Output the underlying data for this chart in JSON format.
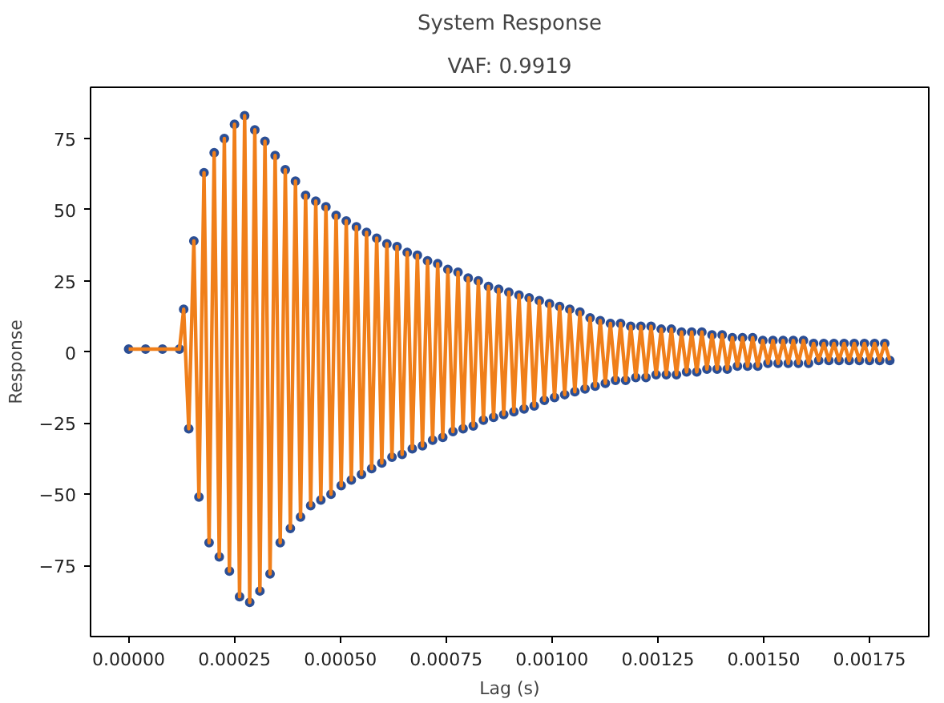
{
  "chart_data": {
    "type": "line",
    "title": "System Response",
    "subtitle": "VAF: 0.9919",
    "xlabel": "Lag (s)",
    "ylabel": "Response",
    "xlim": [
      -9e-05,
      0.00189
    ],
    "ylim": [
      -100,
      93
    ],
    "xticks": [
      {
        "value": 0,
        "label": "0.00000"
      },
      {
        "value": 0.00025,
        "label": "0.00025"
      },
      {
        "value": 0.0005,
        "label": "0.00050"
      },
      {
        "value": 0.00075,
        "label": "0.00075"
      },
      {
        "value": 0.001,
        "label": "0.00100"
      },
      {
        "value": 0.00125,
        "label": "0.00125"
      },
      {
        "value": 0.0015,
        "label": "0.00150"
      },
      {
        "value": 0.00175,
        "label": "0.00175"
      }
    ],
    "yticks": [
      -75,
      -50,
      -25,
      0,
      25,
      50,
      75
    ],
    "grid": false,
    "x": [
      0,
      4e-05,
      8e-05,
      0.00012,
      0.00013,
      0.000142,
      0.000154,
      0.000166,
      0.000178,
      0.00019,
      0.000202,
      0.000214,
      0.000226,
      0.000238,
      0.00025,
      0.000262,
      0.000274,
      0.000286,
      0.000298,
      0.00031,
      0.000322,
      0.000334,
      0.000346,
      0.000358,
      0.00037,
      0.000382,
      0.000394,
      0.000406,
      0.000418,
      0.00043,
      0.000442,
      0.000454,
      0.000466,
      0.000478,
      0.00049,
      0.000502,
      0.000514,
      0.000526,
      0.000538,
      0.00055,
      0.000562,
      0.000574,
      0.000586,
      0.000598,
      0.00061,
      0.000622,
      0.000634,
      0.000646,
      0.000658,
      0.00067,
      0.000682,
      0.000694,
      0.000706,
      0.000718,
      0.00073,
      0.000742,
      0.000754,
      0.000766,
      0.000778,
      0.00079,
      0.000802,
      0.000814,
      0.000826,
      0.000838,
      0.00085,
      0.000862,
      0.000874,
      0.000886,
      0.000898,
      0.00091,
      0.000922,
      0.000934,
      0.000946,
      0.000958,
      0.00097,
      0.000982,
      0.000994,
      0.001006,
      0.001018,
      0.00103,
      0.001042,
      0.001054,
      0.001066,
      0.001078,
      0.00109,
      0.001102,
      0.001114,
      0.001126,
      0.001138,
      0.00115,
      0.001162,
      0.001174,
      0.001186,
      0.001198,
      0.00121,
      0.001222,
      0.001234,
      0.001246,
      0.001258,
      0.00127,
      0.001282,
      0.001294,
      0.001306,
      0.001318,
      0.00133,
      0.001342,
      0.001354,
      0.001366,
      0.001378,
      0.00139,
      0.001402,
      0.001414,
      0.001426,
      0.001438,
      0.00145,
      0.001462,
      0.001474,
      0.001486,
      0.001498,
      0.00151,
      0.001522,
      0.001534,
      0.001546,
      0.001558,
      0.00157,
      0.001582,
      0.001594,
      0.001606,
      0.001618,
      0.00163,
      0.001642,
      0.001654,
      0.001666,
      0.001678,
      0.00169,
      0.001702,
      0.001714,
      0.001726,
      0.001738,
      0.00175,
      0.001762,
      0.001774,
      0.001786,
      0.001798
    ],
    "series": [
      {
        "type": "scatter",
        "marker": "circle",
        "color": "#2c4f95",
        "values": [
          1,
          1,
          1,
          1,
          15,
          -27,
          39,
          -51,
          63,
          -67,
          70,
          -72,
          75,
          -77,
          80,
          -86,
          83,
          -88,
          78,
          -84,
          74,
          -78,
          69,
          -67,
          64,
          -62,
          60,
          -58,
          55,
          -54,
          53,
          -52,
          51,
          -50,
          48,
          -47,
          46,
          -45,
          44,
          -43,
          42,
          -41,
          40,
          -39,
          38,
          -37,
          37,
          -36,
          35,
          -34,
          34,
          -33,
          32,
          -31,
          31,
          -30,
          29,
          -28,
          28,
          -27,
          26,
          -26,
          25,
          -24,
          23,
          -23,
          22,
          -22,
          21,
          -21,
          20,
          -20,
          19,
          -19,
          18,
          -17,
          17,
          -16,
          16,
          -15,
          15,
          -14,
          14,
          -13,
          12,
          -12,
          11,
          -11,
          10,
          -10,
          10,
          -10,
          9,
          -9,
          9,
          -9,
          9,
          -8,
          8,
          -8,
          8,
          -8,
          7,
          -7,
          7,
          -7,
          7,
          -6,
          6,
          -6,
          6,
          -6,
          5,
          -5,
          5,
          -5,
          5,
          -5,
          4,
          -4,
          4,
          -4,
          4,
          -4,
          4,
          -4,
          4,
          -4,
          3,
          -3,
          3,
          -3,
          3,
          -3,
          3,
          -3,
          3,
          -3,
          3,
          -3,
          3,
          -3,
          3,
          -3
        ]
      },
      {
        "line_style": "solid",
        "color": "#f07f1a",
        "values": [
          1,
          1,
          1,
          1,
          15,
          -27,
          39,
          -51,
          63,
          -67,
          70,
          -72,
          75,
          -77,
          80,
          -86,
          83,
          -88,
          78,
          -84,
          74,
          -78,
          69,
          -67,
          64,
          -62,
          60,
          -58,
          55,
          -54,
          53,
          -52,
          51,
          -50,
          48,
          -47,
          46,
          -45,
          44,
          -43,
          42,
          -41,
          40,
          -39,
          38,
          -37,
          37,
          -36,
          35,
          -34,
          34,
          -33,
          32,
          -31,
          31,
          -30,
          29,
          -28,
          28,
          -27,
          26,
          -26,
          25,
          -24,
          23,
          -23,
          22,
          -22,
          21,
          -21,
          20,
          -20,
          19,
          -19,
          18,
          -17,
          17,
          -16,
          16,
          -15,
          15,
          -14,
          14,
          -13,
          12,
          -12,
          11,
          -11,
          10,
          -10,
          10,
          -10,
          9,
          -9,
          9,
          -9,
          9,
          -8,
          8,
          -8,
          8,
          -8,
          7,
          -7,
          7,
          -7,
          7,
          -6,
          6,
          -6,
          6,
          -6,
          5,
          -5,
          5,
          -5,
          5,
          -5,
          4,
          -4,
          4,
          -4,
          4,
          -4,
          4,
          -4,
          4,
          -4,
          3,
          -3,
          3,
          -3,
          3,
          -3,
          3,
          -3,
          3,
          -3,
          3,
          -3,
          3,
          -3,
          3,
          -3
        ]
      }
    ]
  }
}
